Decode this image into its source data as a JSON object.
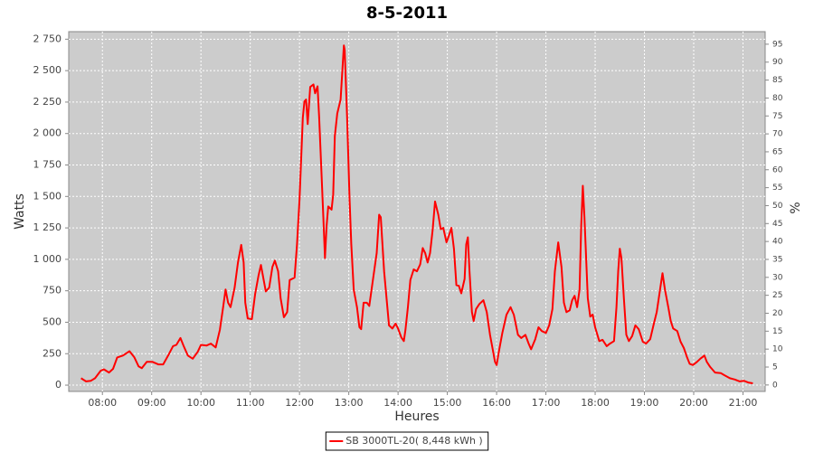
{
  "chart_data": {
    "type": "line",
    "title": "8-5-2011",
    "x_label": "Heures",
    "y_label": "Watts",
    "y2_label": "%",
    "x": [
      "07:34",
      "07:40",
      "07:46",
      "07:51",
      "07:58",
      "08:02",
      "08:08",
      "08:13",
      "08:18",
      "08:25",
      "08:33",
      "08:39",
      "08:44",
      "08:48",
      "08:54",
      "09:01",
      "09:08",
      "09:14",
      "09:20",
      "09:26",
      "09:30",
      "09:35",
      "09:39",
      "09:44",
      "09:50",
      "09:56",
      "10:00",
      "10:07",
      "10:12",
      "10:18",
      "10:23",
      "10:27",
      "10:30",
      "10:33",
      "10:36",
      "10:41",
      "10:45",
      "10:49",
      "10:52",
      "10:54",
      "10:57",
      "11:02",
      "11:06",
      "11:10",
      "11:13",
      "11:16",
      "11:19",
      "11:23",
      "11:27",
      "11:30",
      "11:34",
      "11:37",
      "11:41",
      "11:45",
      "11:48",
      "11:54",
      "11:57",
      "12:00",
      "12:04",
      "12:06",
      "12:08",
      "12:10",
      "12:13",
      "12:17",
      "12:19",
      "12:22",
      "12:24",
      "12:29",
      "12:31",
      "12:33",
      "12:35",
      "12:39",
      "12:41",
      "12:43",
      "12:46",
      "12:50",
      "12:52",
      "12:54",
      "12:55",
      "12:58",
      "13:01",
      "13:03",
      "13:06",
      "13:10",
      "13:13",
      "13:15",
      "13:18",
      "13:22",
      "13:25",
      "13:29",
      "13:34",
      "13:37",
      "13:39",
      "13:43",
      "13:46",
      "13:49",
      "13:53",
      "13:57",
      "14:00",
      "14:04",
      "14:07",
      "14:09",
      "14:12",
      "14:15",
      "14:19",
      "14:23",
      "14:27",
      "14:30",
      "14:33",
      "14:36",
      "14:39",
      "14:42",
      "14:45",
      "14:49",
      "14:52",
      "14:55",
      "14:59",
      "15:02",
      "15:05",
      "15:08",
      "15:11",
      "15:14",
      "15:17",
      "15:21",
      "15:23",
      "15:25",
      "15:27",
      "15:30",
      "15:32",
      "15:35",
      "15:39",
      "15:44",
      "15:48",
      "15:52",
      "15:55",
      "15:58",
      "16:00",
      "16:03",
      "16:07",
      "16:12",
      "16:17",
      "16:21",
      "16:26",
      "16:30",
      "16:35",
      "16:39",
      "16:42",
      "16:47",
      "16:51",
      "16:55",
      "17:00",
      "17:04",
      "17:08",
      "17:11",
      "17:15",
      "17:19",
      "17:22",
      "17:25",
      "17:29",
      "17:32",
      "17:35",
      "17:38",
      "17:41",
      "17:43",
      "17:45",
      "17:47",
      "17:51",
      "17:54",
      "17:57",
      "18:00",
      "18:05",
      "18:09",
      "18:14",
      "18:18",
      "18:23",
      "18:26",
      "18:28",
      "18:30",
      "18:32",
      "18:35",
      "18:38",
      "18:41",
      "18:45",
      "18:49",
      "18:53",
      "18:58",
      "19:02",
      "19:07",
      "19:11",
      "19:15",
      "19:19",
      "19:22",
      "19:25",
      "19:29",
      "19:32",
      "19:35",
      "19:40",
      "19:44",
      "19:48",
      "19:52",
      "19:55",
      "19:59",
      "20:04",
      "20:08",
      "20:13",
      "20:16",
      "20:20",
      "20:26",
      "20:33",
      "20:37",
      "20:44",
      "20:50",
      "20:56",
      "21:01",
      "21:07",
      "21:12"
    ],
    "series": [
      {
        "name": "SB 3000TL-20( 8,448 kWh )",
        "color": "#ff0000",
        "values": [
          55,
          30,
          35,
          55,
          115,
          125,
          100,
          130,
          220,
          235,
          270,
          220,
          150,
          135,
          185,
          185,
          165,
          165,
          235,
          310,
          320,
          375,
          310,
          235,
          210,
          265,
          320,
          315,
          330,
          300,
          440,
          620,
          760,
          655,
          620,
          775,
          975,
          1115,
          975,
          655,
          530,
          525,
          725,
          870,
          955,
          850,
          745,
          775,
          940,
          990,
          905,
          690,
          540,
          580,
          835,
          855,
          1120,
          1480,
          2125,
          2255,
          2270,
          2075,
          2370,
          2390,
          2320,
          2375,
          2125,
          1335,
          1010,
          1265,
          1420,
          1395,
          1515,
          1980,
          2160,
          2270,
          2485,
          2700,
          2665,
          2125,
          1480,
          1120,
          760,
          620,
          460,
          445,
          655,
          655,
          630,
          820,
          1050,
          1355,
          1335,
          905,
          690,
          475,
          450,
          490,
          450,
          380,
          350,
          440,
          620,
          835,
          920,
          905,
          960,
          1090,
          1050,
          975,
          1050,
          1230,
          1460,
          1355,
          1240,
          1250,
          1135,
          1190,
          1250,
          1085,
          795,
          790,
          730,
          845,
          1120,
          1175,
          905,
          580,
          510,
          605,
          645,
          675,
          580,
          400,
          295,
          185,
          160,
          275,
          415,
          560,
          620,
          560,
          400,
          375,
          400,
          330,
          285,
          365,
          460,
          430,
          415,
          475,
          605,
          905,
          1135,
          940,
          655,
          580,
          595,
          675,
          710,
          620,
          760,
          1265,
          1585,
          1335,
          690,
          545,
          560,
          460,
          350,
          360,
          310,
          330,
          350,
          620,
          905,
          1085,
          1010,
          690,
          400,
          350,
          390,
          475,
          445,
          345,
          330,
          365,
          475,
          580,
          760,
          890,
          760,
          620,
          510,
          450,
          430,
          345,
          295,
          220,
          170,
          160,
          185,
          210,
          235,
          185,
          145,
          100,
          95,
          80,
          55,
          45,
          30,
          35,
          20,
          15
        ]
      }
    ],
    "xlim": [
      "07:19",
      "21:27"
    ],
    "xticks": [
      "08:00",
      "09:00",
      "10:00",
      "11:00",
      "12:00",
      "13:00",
      "14:00",
      "15:00",
      "16:00",
      "17:00",
      "18:00",
      "19:00",
      "20:00",
      "21:00"
    ],
    "ylim": [
      -50,
      2810
    ],
    "yticks": [
      0,
      250,
      500,
      750,
      {
        "value": 1000,
        "label": "1 000"
      },
      {
        "value": 1250,
        "label": "1 250"
      },
      {
        "value": 1500,
        "label": "1 500"
      },
      {
        "value": 1750,
        "label": "1 750"
      },
      {
        "value": 2000,
        "label": "2 000"
      },
      {
        "value": 2250,
        "label": "2 250"
      },
      {
        "value": 2500,
        "label": "2 500"
      },
      {
        "value": 2750,
        "label": "2 750"
      }
    ],
    "y2lim": [
      -1.8,
      98.5
    ],
    "y2ticks": [
      0,
      5,
      10,
      15,
      20,
      25,
      30,
      35,
      40,
      45,
      50,
      55,
      60,
      65,
      70,
      75,
      80,
      85,
      90,
      95
    ],
    "grid": true,
    "legend": "bottom",
    "plot_color": "#cccccc"
  }
}
